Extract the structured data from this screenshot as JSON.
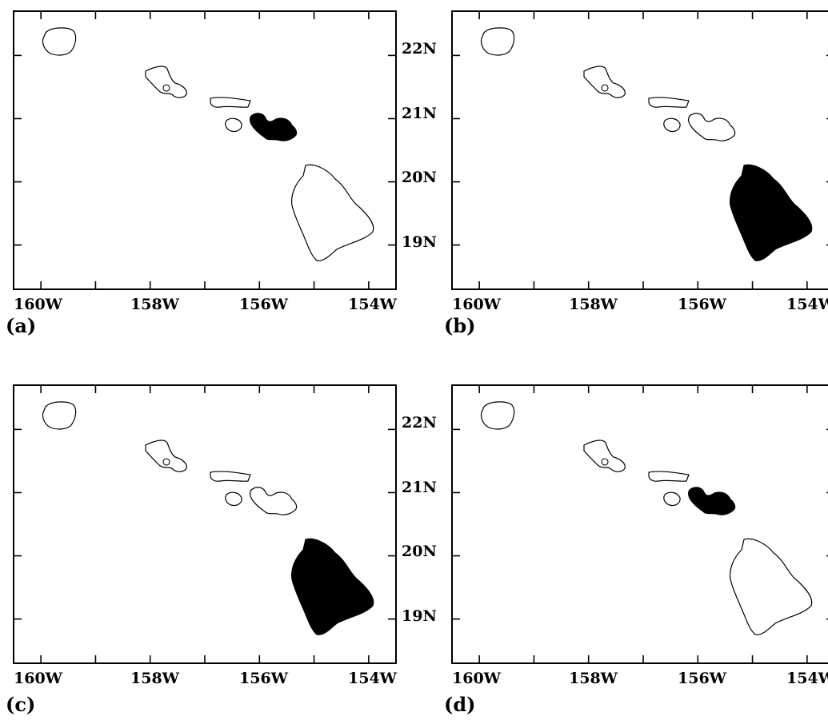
{
  "figure": {
    "x_tick_labels": [
      "160W",
      "158W",
      "156W",
      "154W"
    ],
    "y_tick_labels": [
      "22N",
      "21N",
      "20N",
      "19N"
    ],
    "map_extent": {
      "lon_min": -160.5,
      "lon_max": -153.5,
      "lat_min": 18.3,
      "lat_max": 22.7
    },
    "x_ticks_lon": [
      -160,
      -159,
      -158,
      -157,
      -156,
      -155,
      -154
    ],
    "y_ticks_lat": [
      22,
      21,
      20,
      19
    ],
    "fill_color": "#000000",
    "outline_color": "#000000",
    "islands": [
      "Kauai",
      "Oahu",
      "Molokai",
      "Lanai",
      "Maui",
      "Hawaii"
    ]
  },
  "panels": [
    {
      "label": "(a)",
      "highlighted": [
        "Maui"
      ]
    },
    {
      "label": "(b)",
      "highlighted": [
        "Hawaii"
      ]
    },
    {
      "label": "(c)",
      "highlighted": [
        "Hawaii"
      ]
    },
    {
      "label": "(d)",
      "highlighted": [
        "Maui"
      ]
    }
  ]
}
